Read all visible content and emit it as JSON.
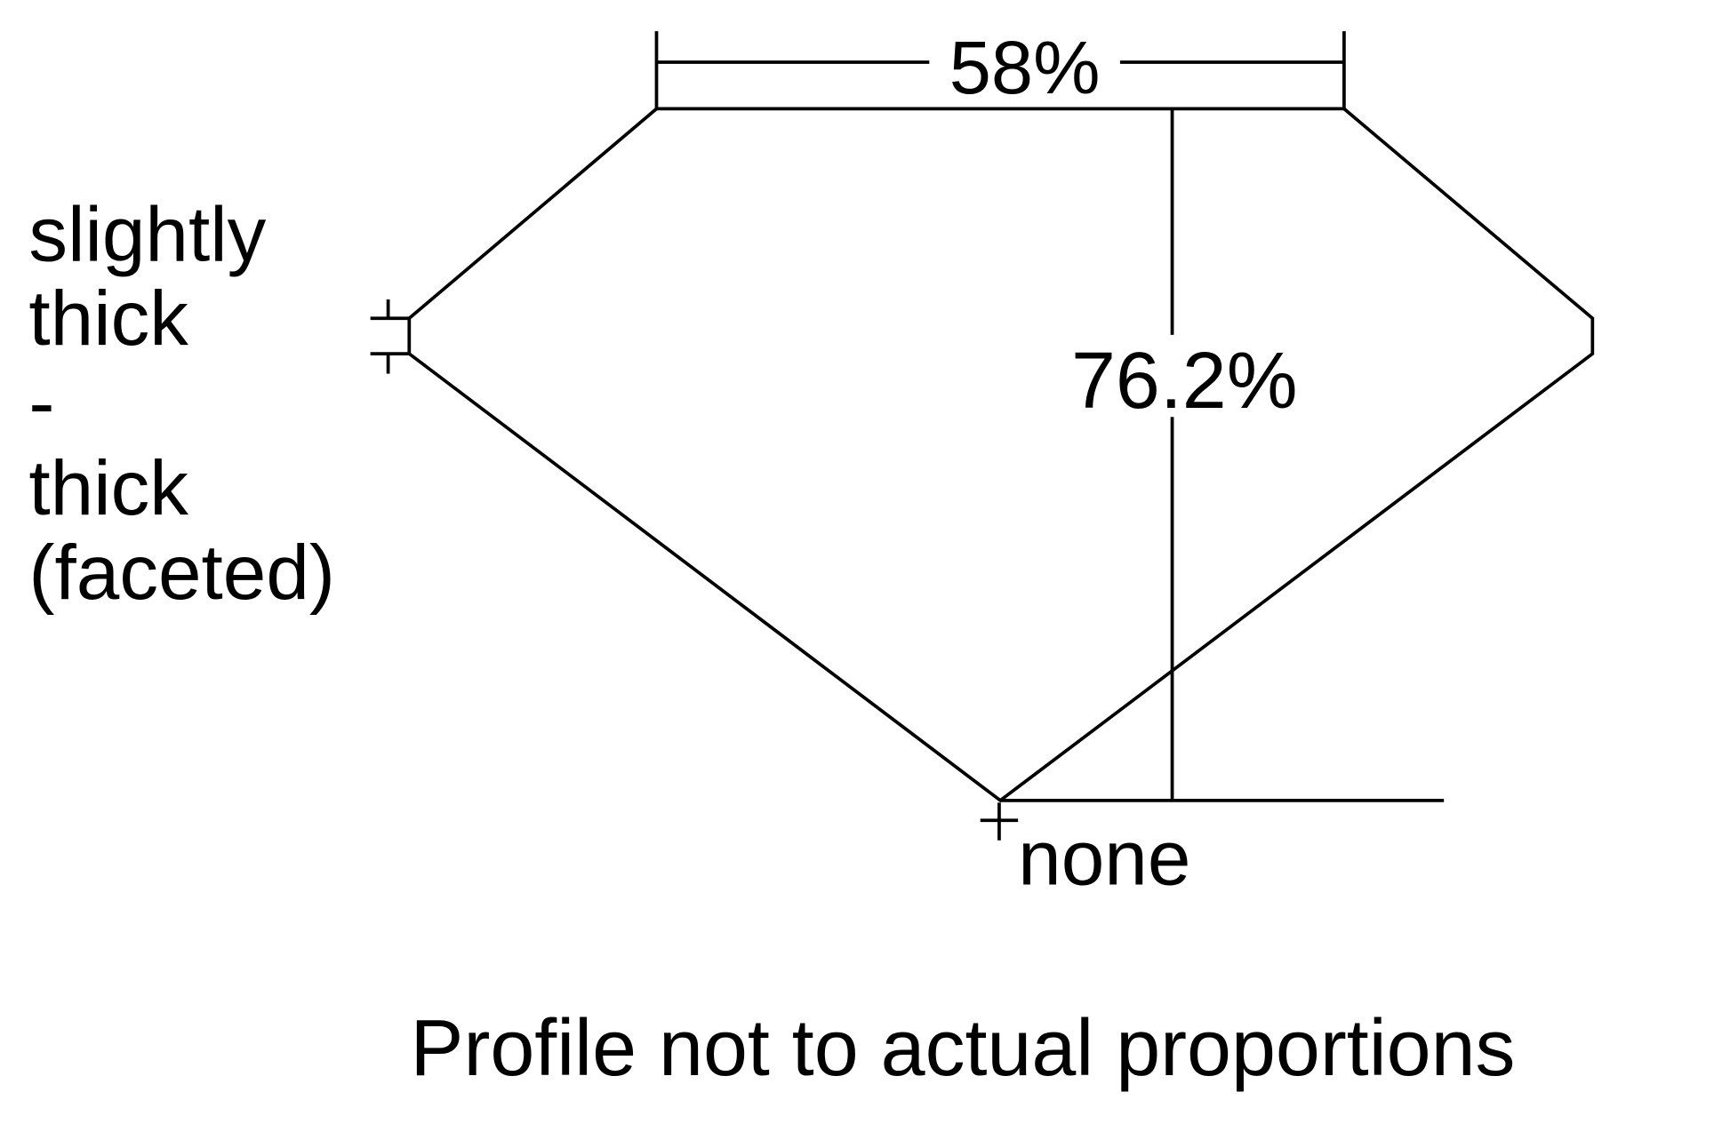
{
  "diagram": {
    "table_percent": "58%",
    "total_depth_percent": "76.2%",
    "girdle_label_lines": [
      "slightly",
      "thick",
      "-",
      "thick",
      "(faceted)"
    ],
    "culet_label": "none",
    "footnote": "Profile not to actual proportions",
    "line_color": "#000000"
  }
}
